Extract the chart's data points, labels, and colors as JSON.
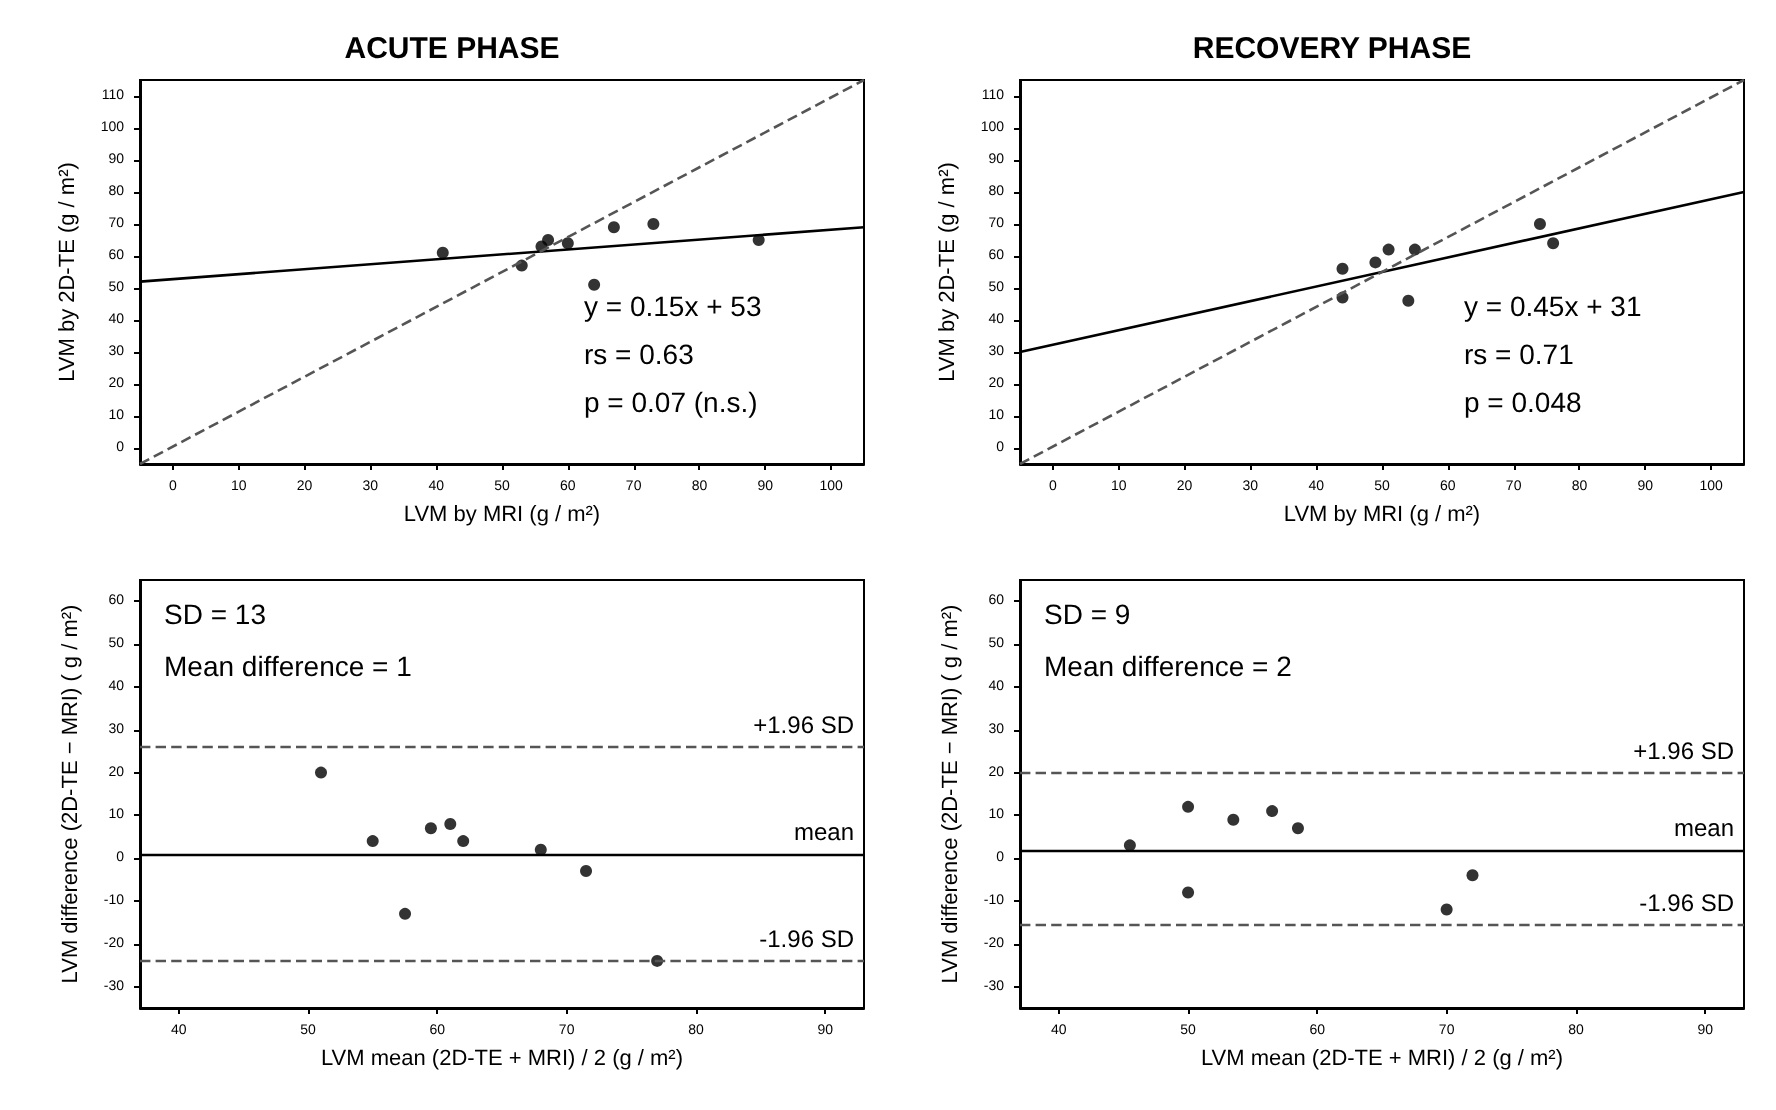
{
  "chart_data": [
    {
      "type": "scatter",
      "title": "ACUTE PHASE",
      "xlabel": "LVM by MRI (g / m²)",
      "ylabel": "LVM by 2D-TE (g / m²)",
      "xlim": [
        -5,
        105
      ],
      "ylim": [
        -5,
        115
      ],
      "xticks": [
        0,
        10,
        20,
        30,
        40,
        50,
        60,
        70,
        80,
        90,
        100
      ],
      "yticks": [
        0,
        10,
        20,
        30,
        40,
        50,
        60,
        70,
        80,
        90,
        100,
        110
      ],
      "grid": false,
      "marker": "circle",
      "annotations": [
        "y = 0.15x + 53",
        "rs = 0.63",
        "p = 0.07 (n.s.)"
      ],
      "series": [
        {
          "color": "#000000",
          "x": [
            41,
            53,
            56,
            57,
            60,
            64,
            67,
            73,
            89
          ],
          "values": [
            61,
            57,
            63,
            65,
            64,
            51,
            69,
            70,
            65
          ]
        },
        {
          "type": "line",
          "color": "#000000",
          "line_style": "solid",
          "marker": "none",
          "x": [
            -5,
            105
          ],
          "values": [
            52,
            69
          ]
        },
        {
          "type": "line",
          "color": "#555555",
          "line_style": "dashed",
          "marker": "none",
          "x": [
            -5,
            105
          ],
          "values": [
            -5,
            115
          ]
        }
      ]
    },
    {
      "type": "scatter",
      "title": "RECOVERY PHASE",
      "xlabel": "LVM by MRI (g / m²)",
      "ylabel": "LVM by 2D-TE (g / m²)",
      "xlim": [
        -5,
        105
      ],
      "ylim": [
        -5,
        115
      ],
      "xticks": [
        0,
        10,
        20,
        30,
        40,
        50,
        60,
        70,
        80,
        90,
        100
      ],
      "yticks": [
        0,
        10,
        20,
        30,
        40,
        50,
        60,
        70,
        80,
        90,
        100,
        110
      ],
      "grid": false,
      "marker": "circle",
      "annotations": [
        "y = 0.45x + 31",
        "rs = 0.71",
        "p = 0.048"
      ],
      "series": [
        {
          "color": "#000000",
          "x": [
            44,
            44,
            49,
            51,
            55,
            54,
            74,
            76
          ],
          "values": [
            56,
            47,
            58,
            62,
            62,
            46,
            70,
            64
          ]
        },
        {
          "type": "line",
          "color": "#000000",
          "line_style": "solid",
          "marker": "none",
          "x": [
            -5,
            105
          ],
          "values": [
            30,
            80
          ]
        },
        {
          "type": "line",
          "color": "#555555",
          "line_style": "dashed",
          "marker": "none",
          "x": [
            -5,
            105
          ],
          "values": [
            -5,
            115
          ]
        }
      ]
    },
    {
      "type": "scatter",
      "xlabel": "LVM mean (2D-TE + MRI) / 2 (g / m²)",
      "ylabel": "LVM difference (2D-TE − MRI) ( g / m²)",
      "xlim": [
        37,
        93
      ],
      "ylim": [
        -35,
        65
      ],
      "xticks": [
        40,
        50,
        60,
        70,
        80,
        90
      ],
      "yticks": [
        -30,
        -20,
        -10,
        0,
        10,
        20,
        30,
        40,
        50,
        60
      ],
      "grid": false,
      "marker": "circle",
      "annotations": [
        "SD = 13",
        "Mean difference = 1"
      ],
      "ref_lines": [
        {
          "axis": "y",
          "value": 26,
          "label": "+1.96 SD",
          "color": "#555555",
          "line_style": "dashed"
        },
        {
          "axis": "y",
          "value": 1,
          "label": "mean",
          "color": "#000000",
          "line_style": "solid"
        },
        {
          "axis": "y",
          "value": -24,
          "label": "-1.96 SD",
          "color": "#555555",
          "line_style": "dashed"
        }
      ],
      "series": [
        {
          "color": "#000000",
          "x": [
            51,
            55,
            57.5,
            59.5,
            61,
            62,
            68,
            71.5,
            77
          ],
          "values": [
            20,
            4,
            -13,
            7,
            8,
            4,
            2,
            -3,
            -24
          ]
        }
      ]
    },
    {
      "type": "scatter",
      "xlabel": "LVM mean (2D-TE + MRI) / 2 (g / m²)",
      "ylabel": "LVM difference (2D-TE − MRI) ( g / m²)",
      "xlim": [
        37,
        93
      ],
      "ylim": [
        -35,
        65
      ],
      "xticks": [
        40,
        50,
        60,
        70,
        80,
        90
      ],
      "yticks": [
        -30,
        -20,
        -10,
        0,
        10,
        20,
        30,
        40,
        50,
        60
      ],
      "grid": false,
      "marker": "circle",
      "annotations": [
        "SD = 9",
        "Mean difference = 2"
      ],
      "ref_lines": [
        {
          "axis": "y",
          "value": 20,
          "label": "+1.96 SD",
          "color": "#555555",
          "line_style": "dashed"
        },
        {
          "axis": "y",
          "value": 2,
          "label": "mean",
          "color": "#000000",
          "line_style": "solid"
        },
        {
          "axis": "y",
          "value": -15.5,
          "label": "-1.96 SD",
          "color": "#555555",
          "line_style": "dashed"
        }
      ],
      "series": [
        {
          "color": "#000000",
          "x": [
            45.5,
            50,
            50,
            53.5,
            56.5,
            58.5,
            70,
            72
          ],
          "values": [
            3,
            12,
            -8,
            9,
            11,
            7,
            -12,
            -4
          ]
        }
      ]
    }
  ]
}
